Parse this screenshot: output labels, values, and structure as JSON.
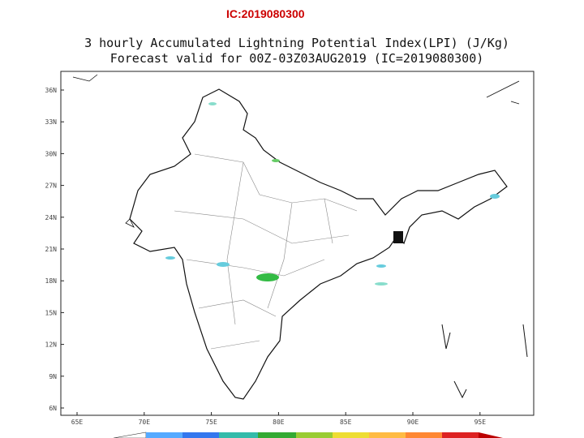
{
  "header": {
    "ic_label": "IC:2019080300"
  },
  "title": {
    "line1": "3 hourly Accumulated Lightning Potential Index(LPI) (J/Kg)",
    "line2": "Forecast valid for 00Z-03Z03AUG2019 (IC=2019080300)"
  },
  "axes": {
    "lat_labels": [
      "36N",
      "33N",
      "30N",
      "27N",
      "24N",
      "21N",
      "18N",
      "15N",
      "12N",
      "9N",
      "6N"
    ],
    "lon_labels": [
      "65E",
      "70E",
      "75E",
      "80E",
      "85E",
      "90E",
      "95E"
    ]
  }
}
